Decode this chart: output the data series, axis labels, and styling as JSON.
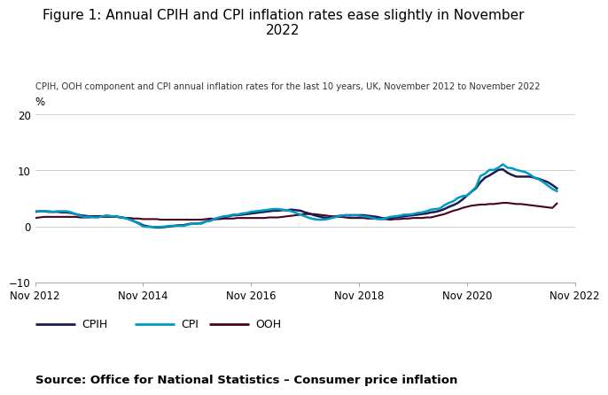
{
  "title": "Figure 1: Annual CPIH and CPI inflation rates ease slightly in November\n2022",
  "subtitle": "CPIH, OOH component and CPI annual inflation rates for the last 10 years, UK, November 2012 to November 2022",
  "source": "Source: Office for National Statistics – Consumer price inflation",
  "ylabel": "%",
  "ylim": [
    -10,
    20
  ],
  "yticks": [
    -10,
    0,
    10,
    20
  ],
  "x_tick_labels": [
    "Nov 2012",
    "Nov 2014",
    "Nov 2016",
    "Nov 2018",
    "Nov 2020",
    "Nov 2022"
  ],
  "xtick_positions": [
    0,
    24,
    48,
    72,
    96,
    120
  ],
  "cpih_color": "#1c1c4e",
  "cpi_color": "#009ac7",
  "ooh_color": "#4a0020",
  "cpih": [
    2.6,
    2.7,
    2.7,
    2.6,
    2.6,
    2.6,
    2.5,
    2.5,
    2.4,
    2.2,
    2.0,
    1.9,
    1.8,
    1.8,
    1.8,
    1.8,
    1.9,
    1.8,
    1.8,
    1.6,
    1.5,
    1.3,
    0.9,
    0.6,
    0.2,
    0.0,
    -0.1,
    -0.2,
    -0.2,
    -0.1,
    0.0,
    0.1,
    0.2,
    0.2,
    0.4,
    0.5,
    0.5,
    0.6,
    0.9,
    1.1,
    1.3,
    1.5,
    1.7,
    1.8,
    2.0,
    2.0,
    2.1,
    2.2,
    2.3,
    2.4,
    2.5,
    2.6,
    2.7,
    2.8,
    2.8,
    2.9,
    2.9,
    3.0,
    2.9,
    2.8,
    2.5,
    2.3,
    2.0,
    1.8,
    1.6,
    1.5,
    1.7,
    1.8,
    1.9,
    2.0,
    2.0,
    2.0,
    2.0,
    2.0,
    1.9,
    1.8,
    1.7,
    1.5,
    1.4,
    1.4,
    1.6,
    1.7,
    1.8,
    1.9,
    2.0,
    2.1,
    2.2,
    2.3,
    2.5,
    2.6,
    2.8,
    3.1,
    3.5,
    3.8,
    4.2,
    4.8,
    5.5,
    6.2,
    6.8,
    7.9,
    8.7,
    9.1,
    9.6,
    10.1,
    10.2,
    9.6,
    9.2,
    8.9,
    8.9,
    8.9,
    8.9,
    8.7,
    8.5,
    8.2,
    7.9,
    7.4,
    6.8
  ],
  "cpi": [
    2.7,
    2.7,
    2.7,
    2.7,
    2.6,
    2.7,
    2.7,
    2.7,
    2.5,
    2.2,
    1.9,
    1.7,
    1.7,
    1.6,
    1.6,
    1.8,
    1.9,
    1.8,
    1.8,
    1.6,
    1.5,
    1.2,
    0.9,
    0.5,
    0.0,
    -0.1,
    -0.1,
    -0.1,
    -0.1,
    0.0,
    0.1,
    0.1,
    0.1,
    0.1,
    0.3,
    0.5,
    0.5,
    0.5,
    0.9,
    1.0,
    1.4,
    1.6,
    1.8,
    1.9,
    2.1,
    2.1,
    2.3,
    2.4,
    2.6,
    2.7,
    2.8,
    2.9,
    3.0,
    3.1,
    3.1,
    3.0,
    2.9,
    2.7,
    2.4,
    2.1,
    1.8,
    1.5,
    1.3,
    1.2,
    1.2,
    1.3,
    1.5,
    1.7,
    1.9,
    2.0,
    1.9,
    2.0,
    1.9,
    1.8,
    1.7,
    1.5,
    1.3,
    1.3,
    1.5,
    1.7,
    1.8,
    1.9,
    2.1,
    2.1,
    2.2,
    2.4,
    2.5,
    2.7,
    3.0,
    3.1,
    3.2,
    3.8,
    4.2,
    4.5,
    5.1,
    5.4,
    5.5,
    6.2,
    7.0,
    9.0,
    9.4,
    10.1,
    10.1,
    10.5,
    11.1,
    10.5,
    10.4,
    10.1,
    9.9,
    9.7,
    9.3,
    8.7,
    8.4,
    7.9,
    7.3,
    6.7,
    6.3
  ],
  "ooh": [
    1.5,
    1.6,
    1.7,
    1.7,
    1.7,
    1.7,
    1.7,
    1.7,
    1.7,
    1.7,
    1.6,
    1.6,
    1.6,
    1.7,
    1.8,
    1.7,
    1.7,
    1.7,
    1.7,
    1.6,
    1.5,
    1.5,
    1.4,
    1.4,
    1.3,
    1.3,
    1.3,
    1.3,
    1.2,
    1.2,
    1.2,
    1.2,
    1.2,
    1.2,
    1.2,
    1.2,
    1.2,
    1.2,
    1.3,
    1.4,
    1.3,
    1.3,
    1.4,
    1.4,
    1.4,
    1.5,
    1.5,
    1.5,
    1.5,
    1.5,
    1.5,
    1.5,
    1.6,
    1.6,
    1.6,
    1.7,
    1.8,
    1.9,
    2.0,
    2.1,
    2.2,
    2.2,
    2.2,
    2.1,
    2.0,
    1.9,
    1.8,
    1.7,
    1.7,
    1.6,
    1.5,
    1.5,
    1.5,
    1.5,
    1.4,
    1.4,
    1.4,
    1.3,
    1.3,
    1.2,
    1.3,
    1.3,
    1.4,
    1.4,
    1.5,
    1.5,
    1.5,
    1.6,
    1.6,
    1.8,
    2.0,
    2.2,
    2.5,
    2.8,
    3.0,
    3.3,
    3.5,
    3.7,
    3.8,
    3.9,
    3.9,
    4.0,
    4.0,
    4.1,
    4.2,
    4.2,
    4.1,
    4.0,
    4.0,
    3.9,
    3.8,
    3.7,
    3.6,
    3.5,
    3.4,
    3.3,
    4.1
  ]
}
